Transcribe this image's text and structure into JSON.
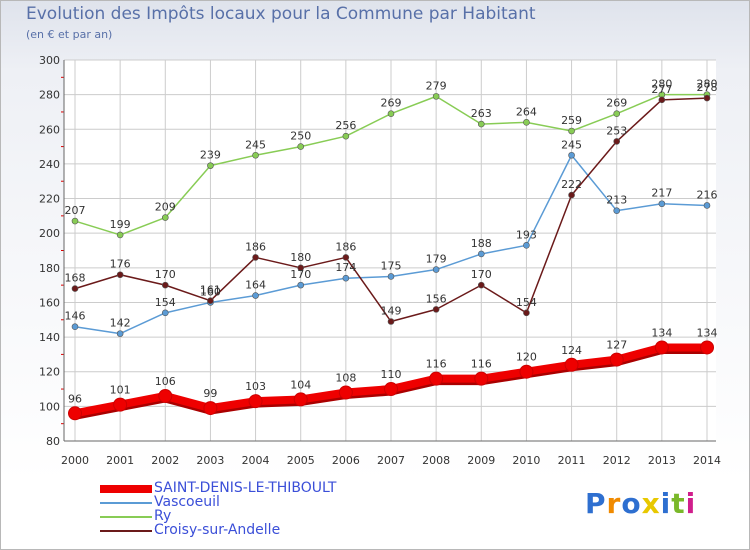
{
  "title": "Evolution des Impôts locaux pour la Commune par Habitant",
  "subtitle": "(en € et par an)",
  "logo_text": "Proxiti",
  "chart_data": {
    "type": "line",
    "title": "Evolution des Impôts locaux pour la Commune par Habitant",
    "subtitle": "(en € et par an)",
    "categories": [
      "2000",
      "2001",
      "2002",
      "2003",
      "2004",
      "2005",
      "2006",
      "2007",
      "2008",
      "2009",
      "2010",
      "2011",
      "2012",
      "2013",
      "2014"
    ],
    "ylim": [
      80,
      300
    ],
    "yticks": [
      80,
      100,
      120,
      140,
      160,
      180,
      200,
      220,
      240,
      260,
      280,
      300
    ],
    "grid": true,
    "legend_position": "bottom-left",
    "series": [
      {
        "name": "SAINT-DENIS-LE-THIBOULT",
        "color": "#ee0000",
        "values": [
          96,
          101,
          106,
          99,
          103,
          104,
          108,
          110,
          116,
          116,
          120,
          124,
          127,
          134,
          134
        ]
      },
      {
        "name": "Vascoeuil",
        "color": "#5b9bd5",
        "values": [
          146,
          142,
          154,
          160,
          164,
          170,
          174,
          175,
          179,
          188,
          193,
          245,
          213,
          217,
          216
        ]
      },
      {
        "name": "Ry",
        "color": "#88cc55",
        "values": [
          207,
          199,
          209,
          239,
          245,
          250,
          256,
          269,
          279,
          263,
          264,
          259,
          269,
          280,
          280
        ]
      },
      {
        "name": "Croisy-sur-Andelle",
        "color": "#6b1a1a",
        "values": [
          168,
          176,
          170,
          161,
          186,
          180,
          186,
          149,
          156,
          170,
          154,
          222,
          253,
          277,
          278
        ]
      }
    ]
  }
}
